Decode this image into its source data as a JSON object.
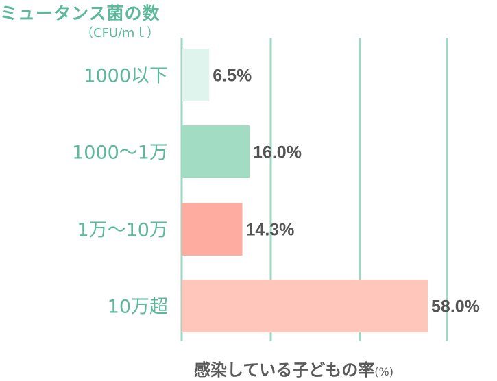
{
  "chart_data": {
    "type": "bar",
    "orientation": "horizontal",
    "title": "ミュータンス菌の数",
    "subtitle": "（CFU/ｍｌ）",
    "xlabel": "感染している子どもの率",
    "xlabel_unit": "(%)",
    "categories": [
      "1000以下",
      "1000〜1万",
      "1万〜10万",
      "10万超"
    ],
    "values": [
      6.5,
      16.0,
      14.3,
      58.0
    ],
    "value_labels": [
      "6.5%",
      "16.0%",
      "14.3%",
      "58.0%"
    ],
    "colors": [
      "#dff4ec",
      "#a1dcc3",
      "#ffaca0",
      "#ffc7bc"
    ],
    "xlim": [
      0,
      60
    ],
    "grid": true,
    "grid_color": "#9fd8c2"
  }
}
